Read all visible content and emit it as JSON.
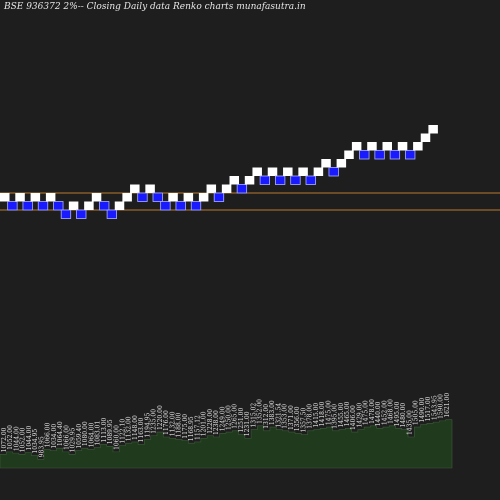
{
  "chart_data": {
    "type": "renko",
    "title": "BSE 936372  2%-- Closing Daily data  Renko  charts munafasutra.in",
    "brick_size_pct": 2,
    "colors": {
      "background": "#1e1e1e",
      "up_brick": "#ffffff",
      "down_brick": "#1a1aff",
      "down_brick_border": "#aab0ff",
      "reference_line": "#b87a30",
      "volume_fill": "#1f3a1c",
      "volume_stroke": "#3c5a38",
      "label_text": "#e6e6e6"
    },
    "bricks": [
      {
        "dir": "up",
        "level": 0
      },
      {
        "dir": "down",
        "level": -1
      },
      {
        "dir": "up",
        "level": 0
      },
      {
        "dir": "down",
        "level": -1
      },
      {
        "dir": "up",
        "level": 0
      },
      {
        "dir": "down",
        "level": -1
      },
      {
        "dir": "up",
        "level": 0
      },
      {
        "dir": "down",
        "level": -1
      },
      {
        "dir": "down",
        "level": -2
      },
      {
        "dir": "up",
        "level": -1
      },
      {
        "dir": "down",
        "level": -2
      },
      {
        "dir": "up",
        "level": -1
      },
      {
        "dir": "up",
        "level": 0
      },
      {
        "dir": "down",
        "level": -1
      },
      {
        "dir": "down",
        "level": -2
      },
      {
        "dir": "up",
        "level": -1
      },
      {
        "dir": "up",
        "level": 0
      },
      {
        "dir": "up",
        "level": 1
      },
      {
        "dir": "down",
        "level": 0
      },
      {
        "dir": "up",
        "level": 1
      },
      {
        "dir": "down",
        "level": 0
      },
      {
        "dir": "down",
        "level": -1
      },
      {
        "dir": "up",
        "level": 0
      },
      {
        "dir": "down",
        "level": -1
      },
      {
        "dir": "up",
        "level": 0
      },
      {
        "dir": "down",
        "level": -1
      },
      {
        "dir": "up",
        "level": 0
      },
      {
        "dir": "up",
        "level": 1
      },
      {
        "dir": "down",
        "level": 0
      },
      {
        "dir": "up",
        "level": 1
      },
      {
        "dir": "up",
        "level": 2
      },
      {
        "dir": "down",
        "level": 1
      },
      {
        "dir": "up",
        "level": 2
      },
      {
        "dir": "up",
        "level": 3
      },
      {
        "dir": "down",
        "level": 2
      },
      {
        "dir": "up",
        "level": 3
      },
      {
        "dir": "down",
        "level": 2
      },
      {
        "dir": "up",
        "level": 3
      },
      {
        "dir": "down",
        "level": 2
      },
      {
        "dir": "up",
        "level": 3
      },
      {
        "dir": "down",
        "level": 2
      },
      {
        "dir": "up",
        "level": 3
      },
      {
        "dir": "up",
        "level": 4
      },
      {
        "dir": "down",
        "level": 3
      },
      {
        "dir": "up",
        "level": 4
      },
      {
        "dir": "up",
        "level": 5
      },
      {
        "dir": "up",
        "level": 6
      },
      {
        "dir": "down",
        "level": 5
      },
      {
        "dir": "up",
        "level": 6
      },
      {
        "dir": "down",
        "level": 5
      },
      {
        "dir": "up",
        "level": 6
      },
      {
        "dir": "down",
        "level": 5
      },
      {
        "dir": "up",
        "level": 6
      },
      {
        "dir": "down",
        "level": 5
      },
      {
        "dir": "up",
        "level": 6
      },
      {
        "dir": "up",
        "level": 7
      },
      {
        "dir": "up",
        "level": 8
      }
    ],
    "reference_lines": [
      0.5,
      -1.5
    ],
    "volume_labels": [
      "1072.00",
      "1052.00",
      "1044.00",
      "1052.00",
      "1044.00",
      "1034.95",
      "983.95",
      "1066.00",
      "1034.00",
      "1064.40",
      "1066.00",
      "1029.95",
      "1059.40",
      "1080.00",
      "1064.00",
      "1083.01",
      "1113.00",
      "1089.95",
      "1060.00",
      "1122.10",
      "1132.00",
      "1148.00",
      "1163.00",
      "1194.95",
      "1235.00",
      "1220.00",
      "1176.00",
      "1132.00",
      "1188.00",
      "1175.00",
      "1168.95",
      "1157.12",
      "1201.00",
      "1228.00",
      "1238.00",
      "1249.00",
      "1250.00",
      "1265.00",
      "1251.00",
      "1231.00",
      "1315.02",
      "1352.00",
      "1312.00",
      "1383.00",
      "1321.54",
      "1353.00",
      "1371.00",
      "1356.00",
      "1357.50",
      "1378.00",
      "1415.00",
      "1418.00",
      "1475.00",
      "1395.00",
      "1455.00",
      "1465.00",
      "1406.00",
      "1429.00",
      "1475.00",
      "1478.00",
      "1440.00",
      "1452.00",
      "1468.00",
      "1495.00",
      "1480.00",
      "1435.00",
      "1505.00",
      "1490.00",
      "1517.00",
      "1543.95",
      "1590.00",
      "1621.00"
    ],
    "volumes": [
      22,
      26,
      24,
      22,
      25,
      20,
      14,
      30,
      28,
      32,
      26,
      22,
      28,
      32,
      30,
      33,
      38,
      35,
      26,
      36,
      40,
      42,
      38,
      46,
      52,
      58,
      50,
      48,
      46,
      44,
      40,
      42,
      48,
      52,
      50,
      56,
      58,
      60,
      54,
      48,
      62,
      68,
      60,
      66,
      62,
      60,
      58,
      56,
      54,
      60,
      62,
      64,
      66,
      60,
      62,
      64,
      58,
      62,
      66,
      68,
      64,
      66,
      68,
      64,
      62,
      50,
      66,
      70,
      72,
      74,
      76,
      78
    ]
  }
}
